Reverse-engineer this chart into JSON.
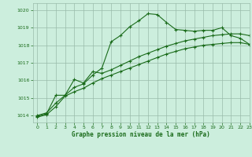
{
  "title": "Graphe pression niveau de la mer (hPa)",
  "bg_color": "#cceedd",
  "grid_color": "#99bbaa",
  "line_color": "#1a6b1a",
  "xlim": [
    -0.5,
    23
  ],
  "ylim": [
    1013.6,
    1020.4
  ],
  "yticks": [
    1014,
    1015,
    1016,
    1017,
    1018,
    1019,
    1020
  ],
  "xticks": [
    0,
    1,
    2,
    3,
    4,
    5,
    6,
    7,
    8,
    9,
    10,
    11,
    12,
    13,
    14,
    15,
    16,
    17,
    18,
    19,
    20,
    21,
    22,
    23
  ],
  "series1": {
    "x": [
      0,
      1,
      2,
      3,
      4,
      5,
      6,
      7,
      8,
      9,
      10,
      11,
      12,
      13,
      14,
      15,
      16,
      17,
      18,
      19,
      20,
      21,
      22,
      23
    ],
    "y": [
      1014.0,
      1014.15,
      1014.7,
      1015.15,
      1015.6,
      1015.8,
      1016.3,
      1016.7,
      1018.2,
      1018.55,
      1019.05,
      1019.4,
      1019.8,
      1019.75,
      1019.3,
      1018.9,
      1018.85,
      1018.8,
      1018.85,
      1018.85,
      1019.0,
      1018.55,
      1018.4,
      1018.05
    ]
  },
  "series2": {
    "x": [
      0,
      1,
      2,
      3,
      4,
      5,
      6,
      7,
      8,
      9,
      10,
      11,
      12,
      13,
      14,
      15,
      16,
      17,
      18,
      19,
      20,
      21,
      22,
      23
    ],
    "y": [
      1013.9,
      1014.05,
      1014.5,
      1015.1,
      1015.35,
      1015.55,
      1015.85,
      1016.1,
      1016.3,
      1016.5,
      1016.7,
      1016.9,
      1017.1,
      1017.3,
      1017.5,
      1017.65,
      1017.8,
      1017.9,
      1018.0,
      1018.05,
      1018.1,
      1018.15,
      1018.15,
      1018.05
    ]
  },
  "series3": {
    "x": [
      0,
      1,
      2,
      3,
      4,
      5,
      6,
      7,
      8,
      9,
      10,
      11,
      12,
      13,
      14,
      15,
      16,
      17,
      18,
      19,
      20,
      21,
      22,
      23
    ],
    "y": [
      1013.95,
      1014.1,
      1015.15,
      1015.15,
      1016.05,
      1015.85,
      1016.5,
      1016.4,
      1016.6,
      1016.85,
      1017.1,
      1017.35,
      1017.55,
      1017.75,
      1017.95,
      1018.1,
      1018.25,
      1018.35,
      1018.45,
      1018.55,
      1018.6,
      1018.65,
      1018.65,
      1018.55
    ]
  }
}
